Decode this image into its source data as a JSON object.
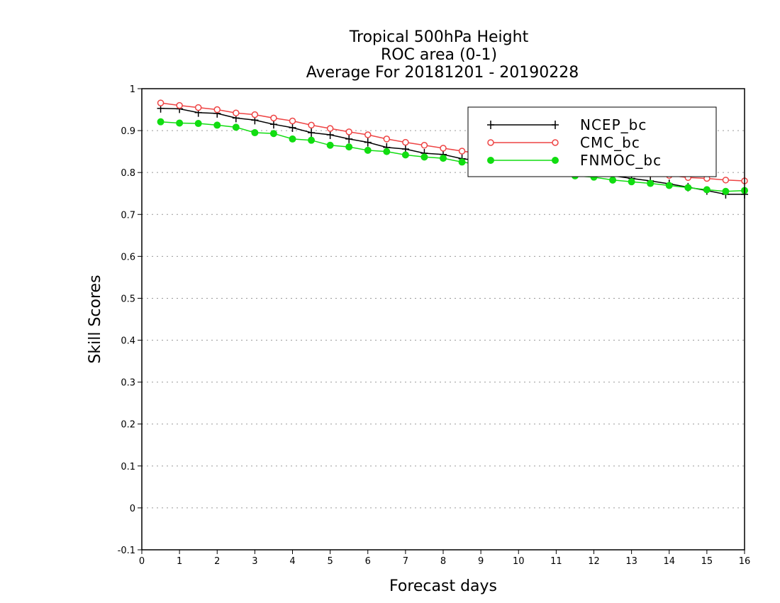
{
  "chart_data": {
    "type": "line",
    "title": [
      "Tropical 500hPa Height",
      "ROC area (0-1)",
      "Average For 20181201 - 20190228"
    ],
    "xlabel": "Forecast days",
    "ylabel": "Skill Scores",
    "xlim": [
      0,
      16
    ],
    "ylim": [
      -0.1,
      1
    ],
    "x_ticks": [
      "0",
      "1",
      "2",
      "3",
      "4",
      "5",
      "6",
      "7",
      "8",
      "9",
      "10",
      "11",
      "12",
      "13",
      "14",
      "15",
      "16"
    ],
    "y_ticks": [
      "-0.1",
      "0",
      "0.1",
      "0.2",
      "0.3",
      "0.4",
      "0.5",
      "0.6",
      "0.7",
      "0.8",
      "0.9",
      "1"
    ],
    "grid": "horizontal dotted",
    "legend_position": "top-right",
    "x": [
      0.5,
      1,
      1.5,
      2,
      2.5,
      3,
      3.5,
      4,
      4.5,
      5,
      5.5,
      6,
      6.5,
      7,
      7.5,
      8,
      8.5,
      9,
      9.5,
      10,
      10.5,
      11,
      11.5,
      12,
      12.5,
      13,
      13.5,
      14,
      14.5,
      15,
      15.5,
      16
    ],
    "series": [
      {
        "name": "NCEP_bc",
        "color": "#000000",
        "marker": "plus",
        "values": [
          0.953,
          0.952,
          0.943,
          0.941,
          0.93,
          0.925,
          0.915,
          0.907,
          0.895,
          0.89,
          0.88,
          0.872,
          0.86,
          0.856,
          0.846,
          0.843,
          0.833,
          0.828,
          0.822,
          0.818,
          0.813,
          0.808,
          0.803,
          0.798,
          0.792,
          0.786,
          0.78,
          0.773,
          0.765,
          0.757,
          0.748,
          0.748
        ]
      },
      {
        "name": "CMC_bc",
        "color": "#ee4444",
        "marker": "open-circle",
        "values": [
          0.966,
          0.96,
          0.955,
          0.95,
          0.942,
          0.938,
          0.93,
          0.923,
          0.913,
          0.905,
          0.897,
          0.89,
          0.88,
          0.872,
          0.865,
          0.858,
          0.851,
          0.845,
          0.84,
          0.835,
          0.828,
          0.822,
          0.816,
          0.81,
          0.806,
          0.802,
          0.797,
          0.793,
          0.788,
          0.786,
          0.782,
          0.78
        ]
      },
      {
        "name": "FNMOC_bc",
        "color": "#11dd11",
        "marker": "filled-circle",
        "values": [
          0.921,
          0.918,
          0.917,
          0.913,
          0.908,
          0.895,
          0.893,
          0.88,
          0.877,
          0.865,
          0.861,
          0.853,
          0.85,
          0.842,
          0.837,
          0.834,
          0.825,
          0.818,
          0.812,
          0.808,
          0.803,
          0.798,
          0.792,
          0.789,
          0.782,
          0.778,
          0.774,
          0.769,
          0.764,
          0.759,
          0.755,
          0.757
        ]
      }
    ]
  }
}
